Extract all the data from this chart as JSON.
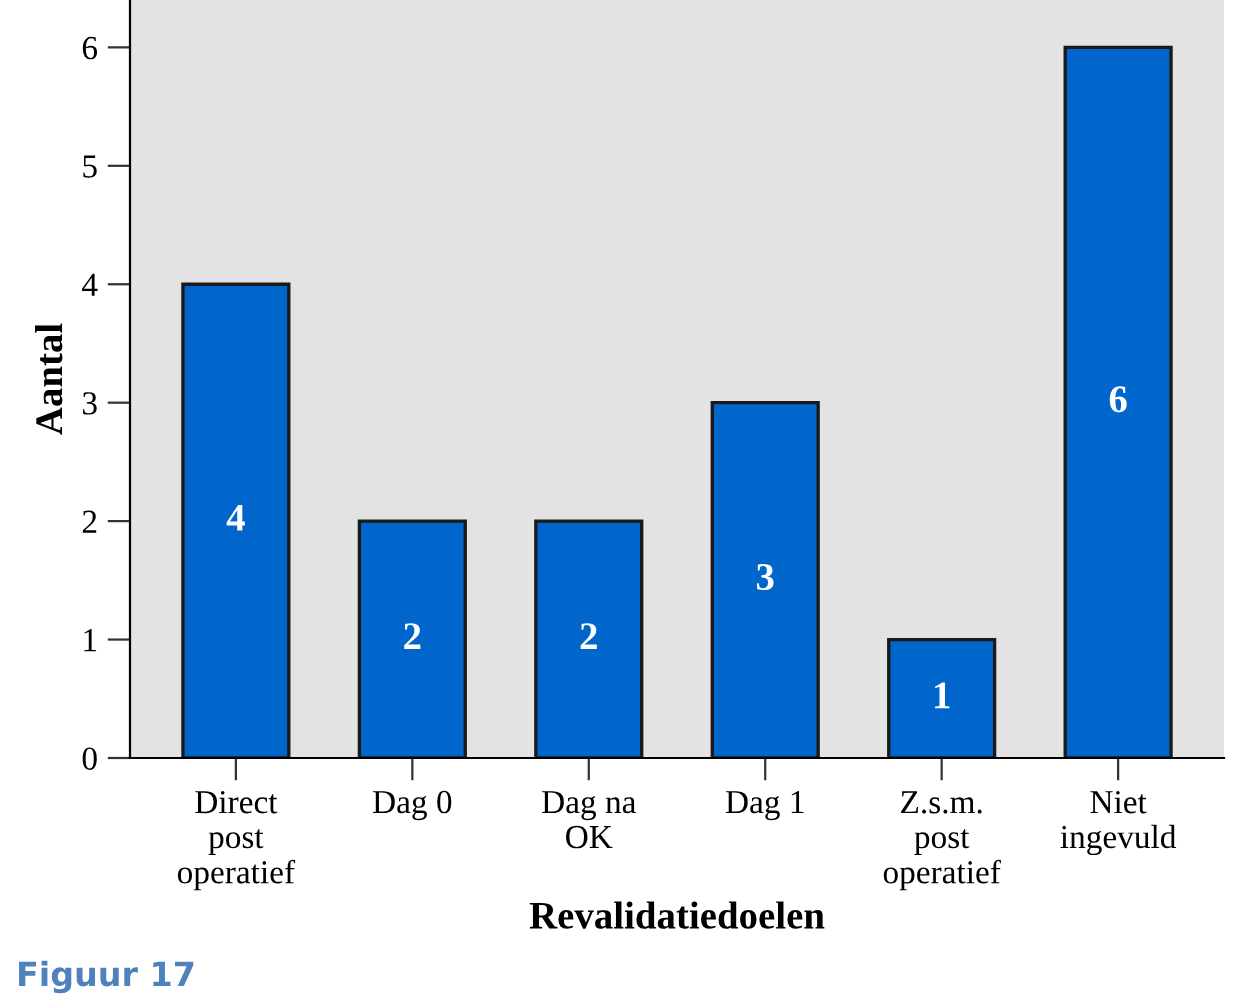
{
  "chart_data": {
    "type": "bar",
    "xlabel": "Revalidatiedoelen",
    "ylabel": "Aantal",
    "categories": [
      "Direct\npost\noperatief",
      "Dag 0",
      "Dag na\nOK",
      "Dag 1",
      "Z.s.m.\npost\noperatief",
      "Niet\ningevuld"
    ],
    "values": [
      4,
      2,
      2,
      3,
      1,
      6
    ],
    "color": "#0066cc",
    "data_labels": true,
    "grid": false,
    "legend": false,
    "ylim": [
      0,
      6.4
    ],
    "yticks": [
      0,
      1,
      2,
      3,
      4,
      5,
      6
    ],
    "annotations": [
      "Figuur 17"
    ]
  }
}
